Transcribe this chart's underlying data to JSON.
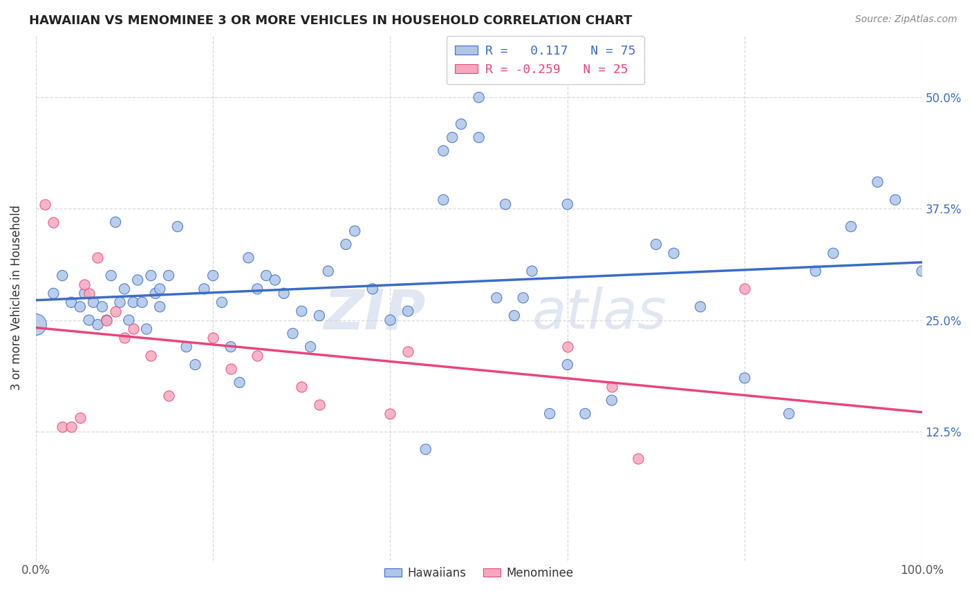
{
  "title": "HAWAIIAN VS MENOMINEE 3 OR MORE VEHICLES IN HOUSEHOLD CORRELATION CHART",
  "source": "Source: ZipAtlas.com",
  "ylabel_label": "3 or more Vehicles in Household",
  "legend_labels": [
    "Hawaiians",
    "Menominee"
  ],
  "R_hawaiian": 0.117,
  "N_hawaiian": 75,
  "R_menominee": -0.259,
  "N_menominee": 25,
  "hawaiian_color": "#aec6e8",
  "menominee_color": "#f5a8bc",
  "line_hawaiian_color": "#3a6cc8",
  "line_menominee_color": "#e8457a",
  "background_color": "#ffffff",
  "grid_color": "#d8d8d8",
  "xlim": [
    0.0,
    1.0
  ],
  "ylim": [
    -0.02,
    0.57
  ],
  "ytick_vals": [
    0.125,
    0.25,
    0.375,
    0.5
  ],
  "ytick_labels": [
    "12.5%",
    "25.0%",
    "37.5%",
    "50.0%"
  ],
  "xtick_vals": [
    0.0,
    0.2,
    0.4,
    0.6,
    0.8,
    1.0
  ],
  "xtick_labels": [
    "0.0%",
    "",
    "",
    "",
    "",
    "100.0%"
  ],
  "hawaiian_x": [
    0.02,
    0.03,
    0.04,
    0.05,
    0.055,
    0.06,
    0.065,
    0.07,
    0.075,
    0.08,
    0.085,
    0.09,
    0.095,
    0.1,
    0.105,
    0.11,
    0.115,
    0.12,
    0.125,
    0.13,
    0.135,
    0.14,
    0.14,
    0.15,
    0.16,
    0.17,
    0.18,
    0.19,
    0.2,
    0.21,
    0.22,
    0.23,
    0.24,
    0.25,
    0.26,
    0.27,
    0.28,
    0.29,
    0.3,
    0.31,
    0.32,
    0.33,
    0.35,
    0.36,
    0.38,
    0.4,
    0.42,
    0.44,
    0.46,
    0.48,
    0.5,
    0.52,
    0.54,
    0.56,
    0.58,
    0.6,
    0.62,
    0.65,
    0.7,
    0.72,
    0.75,
    0.8,
    0.85,
    0.88,
    0.9,
    0.92,
    0.95,
    0.97,
    1.0,
    0.5,
    0.46,
    0.47,
    0.53,
    0.55,
    0.6,
    0.0
  ],
  "hawaiian_y": [
    0.28,
    0.3,
    0.27,
    0.265,
    0.28,
    0.25,
    0.27,
    0.245,
    0.265,
    0.25,
    0.3,
    0.36,
    0.27,
    0.285,
    0.25,
    0.27,
    0.295,
    0.27,
    0.24,
    0.3,
    0.28,
    0.265,
    0.285,
    0.3,
    0.355,
    0.22,
    0.2,
    0.285,
    0.3,
    0.27,
    0.22,
    0.18,
    0.32,
    0.285,
    0.3,
    0.295,
    0.28,
    0.235,
    0.26,
    0.22,
    0.255,
    0.305,
    0.335,
    0.35,
    0.285,
    0.25,
    0.26,
    0.105,
    0.44,
    0.47,
    0.5,
    0.275,
    0.255,
    0.305,
    0.145,
    0.2,
    0.145,
    0.16,
    0.335,
    0.325,
    0.265,
    0.185,
    0.145,
    0.305,
    0.325,
    0.355,
    0.405,
    0.385,
    0.305,
    0.455,
    0.385,
    0.455,
    0.38,
    0.275,
    0.38,
    0.245
  ],
  "hawaiian_sizes": [
    120,
    120,
    120,
    120,
    120,
    120,
    120,
    120,
    120,
    120,
    120,
    120,
    120,
    120,
    120,
    120,
    120,
    120,
    120,
    120,
    120,
    120,
    120,
    120,
    120,
    120,
    120,
    120,
    120,
    120,
    120,
    120,
    120,
    120,
    120,
    120,
    120,
    120,
    120,
    120,
    120,
    120,
    120,
    120,
    120,
    120,
    120,
    120,
    120,
    120,
    120,
    120,
    120,
    120,
    120,
    120,
    120,
    120,
    120,
    120,
    120,
    120,
    120,
    120,
    120,
    120,
    120,
    120,
    120,
    120,
    120,
    120,
    120,
    120,
    120,
    500
  ],
  "menominee_x": [
    0.01,
    0.02,
    0.03,
    0.04,
    0.05,
    0.055,
    0.06,
    0.07,
    0.08,
    0.09,
    0.1,
    0.11,
    0.13,
    0.15,
    0.2,
    0.22,
    0.25,
    0.3,
    0.32,
    0.4,
    0.42,
    0.6,
    0.65,
    0.68,
    0.8
  ],
  "menominee_y": [
    0.38,
    0.36,
    0.13,
    0.13,
    0.14,
    0.29,
    0.28,
    0.32,
    0.25,
    0.26,
    0.23,
    0.24,
    0.21,
    0.165,
    0.23,
    0.195,
    0.21,
    0.175,
    0.155,
    0.145,
    0.215,
    0.22,
    0.175,
    0.095,
    0.285
  ]
}
